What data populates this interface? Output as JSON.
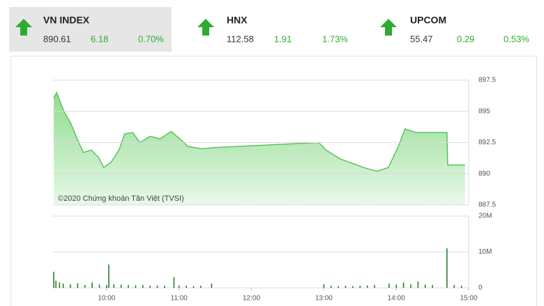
{
  "indices": [
    {
      "name": "VN INDEX",
      "value": "890.61",
      "change": "6.18",
      "percent": "0.70%"
    },
    {
      "name": "HNX",
      "value": "112.58",
      "change": "1.91",
      "percent": "1.73%"
    },
    {
      "name": "UPCOM",
      "value": "55.47",
      "change": "0.29",
      "percent": "0.53%"
    }
  ],
  "chart_data": [
    {
      "type": "area",
      "annotation": "©2020 Chứng khoán Tân Việt (TVSI)",
      "color": "#5dc15d",
      "grid": true,
      "x": [
        9.27,
        9.31,
        9.41,
        9.5,
        9.6,
        9.68,
        9.79,
        9.89,
        9.96,
        10.06,
        10.17,
        10.25,
        10.36,
        10.46,
        10.6,
        10.74,
        10.89,
        11.03,
        11.12,
        11.31,
        11.5,
        12.93,
        13.03,
        13.22,
        13.41,
        13.6,
        13.74,
        13.89,
        14.03,
        14.12,
        14.27,
        14.46,
        14.7,
        14.71,
        14.95
      ],
      "values": [
        896.1,
        896.5,
        895.0,
        894.1,
        892.7,
        891.7,
        891.9,
        891.3,
        890.5,
        890.9,
        891.9,
        893.2,
        893.3,
        892.5,
        893.0,
        892.8,
        893.4,
        892.7,
        892.2,
        892.0,
        892.1,
        892.5,
        891.9,
        891.2,
        890.8,
        890.4,
        890.2,
        890.5,
        892.2,
        893.6,
        893.3,
        893.3,
        893.3,
        890.7,
        890.7
      ],
      "xlim": [
        9.25,
        15
      ],
      "ylim": [
        887.5,
        897.5
      ],
      "yticks": [
        897.5,
        895,
        892.5,
        890,
        887.5
      ]
    },
    {
      "type": "bar",
      "color": "#2f7d2f",
      "grid": true,
      "x": [
        9.27,
        9.3,
        9.35,
        9.4,
        9.5,
        9.6,
        9.7,
        9.8,
        9.9,
        10.0,
        10.03,
        10.1,
        10.2,
        10.3,
        10.4,
        10.5,
        10.6,
        10.7,
        10.8,
        10.93,
        11.0,
        11.1,
        11.2,
        11.3,
        11.45,
        13.0,
        13.1,
        13.2,
        13.3,
        13.4,
        13.5,
        13.6,
        13.7,
        13.9,
        14.0,
        14.1,
        14.2,
        14.3,
        14.4,
        14.5,
        14.7,
        14.8,
        14.9
      ],
      "values": [
        4500000,
        2000000,
        1500000,
        1200000,
        1000000,
        1300000,
        800000,
        1500000,
        900000,
        800000,
        6500000,
        1000000,
        900000,
        800000,
        700000,
        800000,
        600000,
        700000,
        600000,
        3000000,
        700000,
        600000,
        500000,
        600000,
        1200000,
        1000000,
        600000,
        500000,
        600000,
        500000,
        600000,
        700000,
        800000,
        1200000,
        900000,
        1500000,
        1000000,
        1800000,
        900000,
        800000,
        11000000,
        800000,
        600000
      ],
      "xlim": [
        9.25,
        15
      ],
      "ylim": [
        0,
        20000000
      ],
      "yticks": [
        {
          "value": 20000000,
          "label": "20M"
        },
        {
          "value": 10000000,
          "label": "10M"
        },
        0
      ],
      "xticks": [
        {
          "value": 10,
          "label": "10:00"
        },
        {
          "value": 11,
          "label": "11:00"
        },
        {
          "value": 12,
          "label": "12:00"
        },
        {
          "value": 13,
          "label": "13:00"
        },
        {
          "value": 14,
          "label": "14:00"
        },
        {
          "value": 15,
          "label": "15:00"
        }
      ]
    }
  ]
}
